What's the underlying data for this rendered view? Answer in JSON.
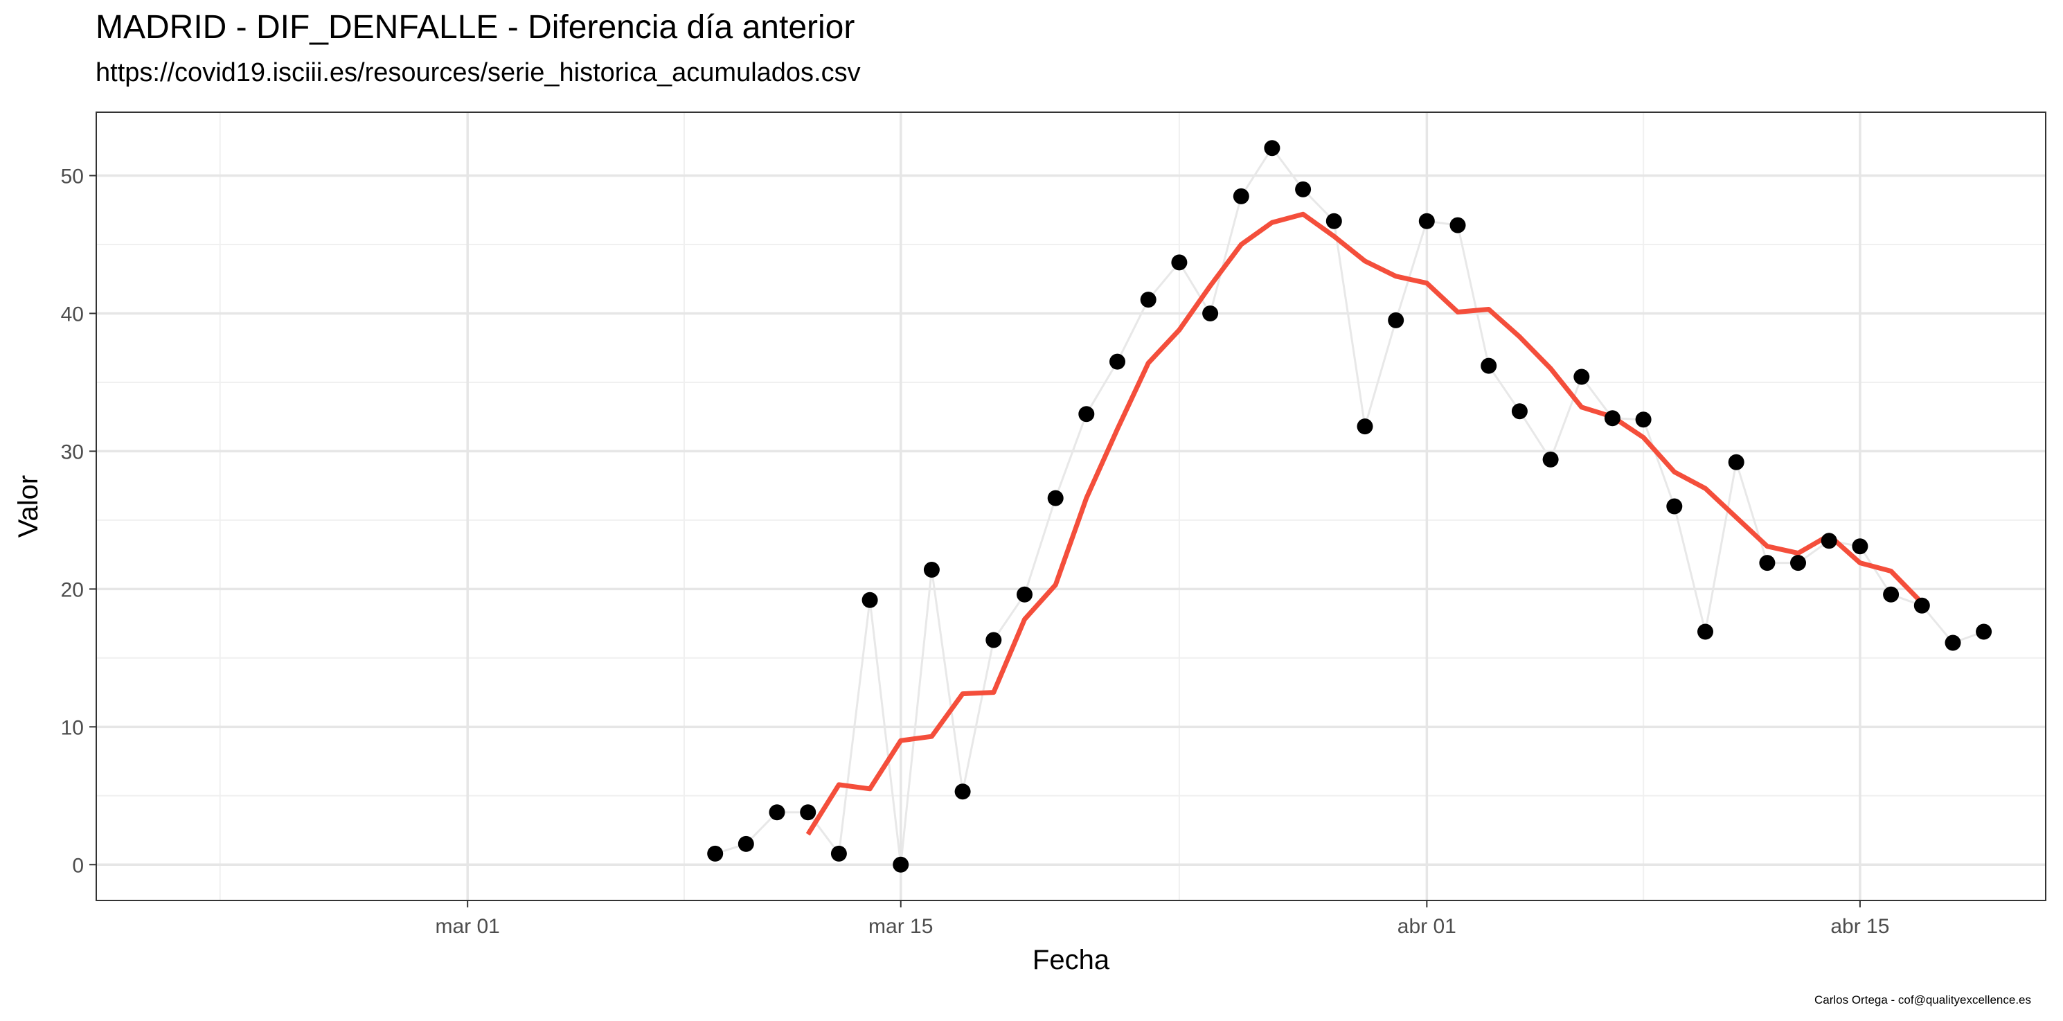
{
  "chart_data": {
    "type": "line",
    "title": "MADRID - DIF_DENFALLE - Diferencia día anterior",
    "subtitle": "https://covid19.isciii.es/resources/serie_historica_acumulados.csv",
    "xlabel": "Fecha",
    "ylabel": "Valor",
    "caption": "Carlos Ortega - cof@qualityexcellence.es",
    "x_ticks": [
      {
        "date": "2020-03-01",
        "label": "mar 01"
      },
      {
        "date": "2020-03-15",
        "label": "mar 15"
      },
      {
        "date": "2020-04-01",
        "label": "abr 01"
      },
      {
        "date": "2020-04-15",
        "label": "abr 15"
      }
    ],
    "x_minor_ticks": [
      "2020-02-22",
      "2020-03-08",
      "2020-03-24",
      "2020-04-08"
    ],
    "xlim": [
      "2020-02-18",
      "2020-04-21"
    ],
    "y_ticks": [
      0,
      10,
      20,
      30,
      40,
      50
    ],
    "ylim": [
      -2.6,
      54.6
    ],
    "grid": true,
    "series": [
      {
        "style": "points-with-line",
        "point_color": "#000000",
        "line_color": "#e8e8e8",
        "x": [
          "2020-03-09",
          "2020-03-10",
          "2020-03-11",
          "2020-03-12",
          "2020-03-13",
          "2020-03-14",
          "2020-03-15",
          "2020-03-16",
          "2020-03-17",
          "2020-03-18",
          "2020-03-19",
          "2020-03-20",
          "2020-03-21",
          "2020-03-22",
          "2020-03-23",
          "2020-03-24",
          "2020-03-25",
          "2020-03-26",
          "2020-03-27",
          "2020-03-28",
          "2020-03-29",
          "2020-03-30",
          "2020-03-31",
          "2020-04-01",
          "2020-04-02",
          "2020-04-03",
          "2020-04-04",
          "2020-04-05",
          "2020-04-06",
          "2020-04-07",
          "2020-04-08",
          "2020-04-09",
          "2020-04-10",
          "2020-04-11",
          "2020-04-12",
          "2020-04-13",
          "2020-04-14",
          "2020-04-15",
          "2020-04-16",
          "2020-04-17",
          "2020-04-18",
          "2020-04-19"
        ],
        "values": [
          0.8,
          1.5,
          3.8,
          3.8,
          0.8,
          19.2,
          0.0,
          21.4,
          5.3,
          16.3,
          19.6,
          26.6,
          32.7,
          36.5,
          41.0,
          43.7,
          40.0,
          48.5,
          52.0,
          49.0,
          46.7,
          31.8,
          39.5,
          46.7,
          46.4,
          36.2,
          32.9,
          29.4,
          35.4,
          32.4,
          32.3,
          26.0,
          16.9,
          29.2,
          21.9,
          21.9,
          23.5,
          23.1,
          19.6,
          18.8,
          16.1,
          16.9
        ]
      },
      {
        "style": "line",
        "line_color": "#f44e3b",
        "x": [
          "2020-03-12",
          "2020-03-13",
          "2020-03-14",
          "2020-03-15",
          "2020-03-16",
          "2020-03-17",
          "2020-03-18",
          "2020-03-19",
          "2020-03-20",
          "2020-03-21",
          "2020-03-22",
          "2020-03-23",
          "2020-03-24",
          "2020-03-25",
          "2020-03-26",
          "2020-03-27",
          "2020-03-28",
          "2020-03-29",
          "2020-03-30",
          "2020-03-31",
          "2020-04-01",
          "2020-04-02",
          "2020-04-03",
          "2020-04-04",
          "2020-04-05",
          "2020-04-06",
          "2020-04-07",
          "2020-04-08",
          "2020-04-09",
          "2020-04-10",
          "2020-04-11",
          "2020-04-12",
          "2020-04-13",
          "2020-04-14",
          "2020-04-15",
          "2020-04-16",
          "2020-04-17"
        ],
        "values": [
          2.2,
          5.8,
          5.5,
          9.0,
          9.3,
          12.4,
          12.5,
          17.8,
          20.3,
          26.6,
          31.6,
          36.4,
          38.8,
          42.0,
          45.0,
          46.6,
          47.2,
          45.6,
          43.8,
          42.7,
          42.2,
          40.1,
          40.3,
          38.3,
          36.0,
          33.2,
          32.5,
          31.0,
          28.5,
          27.3,
          25.2,
          23.1,
          22.6,
          23.9,
          21.9,
          21.3,
          19.0
        ]
      }
    ]
  }
}
